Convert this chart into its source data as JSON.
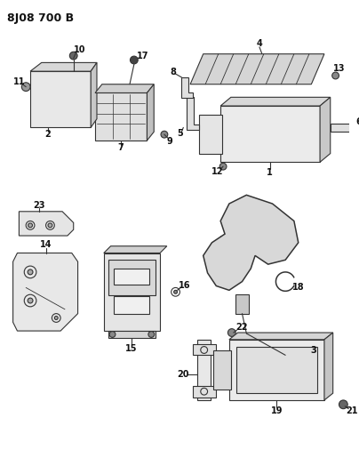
{
  "title": "8J08 700 B",
  "bg_color": "#ffffff",
  "line_color": "#333333",
  "label_color": "#111111",
  "title_fontsize": 9,
  "label_fontsize": 7,
  "figsize": [
    4.04,
    5.33
  ],
  "dpi": 100
}
